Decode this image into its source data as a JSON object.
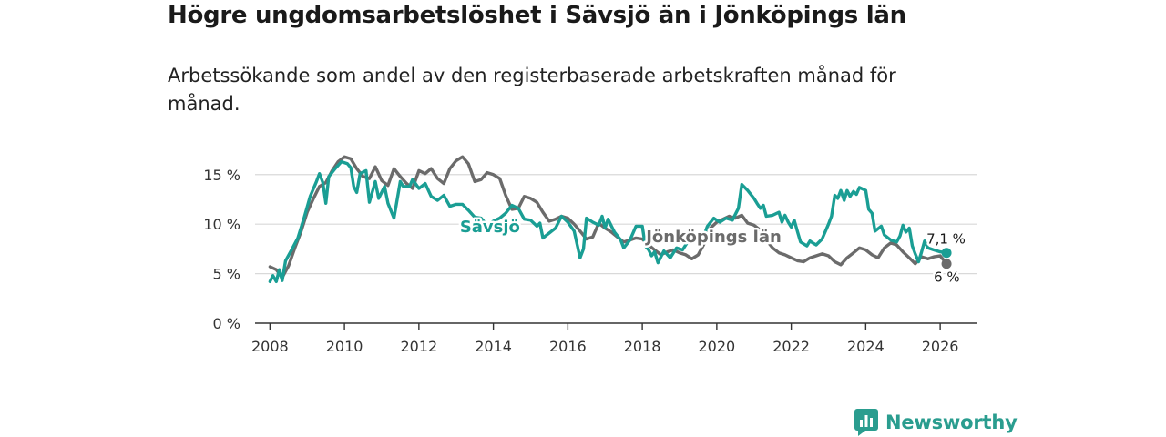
{
  "header": {
    "title": "Högre ungdomsarbetslöshet i Sävsjö än i Jönköpings län",
    "subtitle": "Arbetssökande som andel av den registerbaserade arbetskraften månad för månad."
  },
  "chart_data": {
    "type": "line",
    "title": "Högre ungdomsarbetslöshet i Sävsjö än i Jönköpings län",
    "subtitle": "Arbetssökande som andel av den registerbaserade arbetskraften månad för månad.",
    "xlabel": "",
    "ylabel": "",
    "xlim": [
      2007.6,
      2027.0
    ],
    "ylim": [
      0,
      17
    ],
    "x_ticks": [
      2008,
      2010,
      2012,
      2014,
      2016,
      2018,
      2020,
      2022,
      2024,
      2026
    ],
    "x_tick_labels": [
      "2008",
      "2010",
      "2012",
      "2014",
      "2016",
      "2018",
      "2020",
      "2022",
      "2024",
      "2026"
    ],
    "y_ticks": [
      0,
      5,
      10,
      15
    ],
    "y_tick_labels": [
      "0 %",
      "5 %",
      "10 %",
      "15 %"
    ],
    "grid": true,
    "series": [
      {
        "name": "Jönköpings län",
        "label": "Jönköpings län",
        "color": "#6b6b6b",
        "end_label": "6 %",
        "points": [
          [
            2008.0,
            5.7
          ],
          [
            2008.17,
            5.4
          ],
          [
            2008.33,
            4.6
          ],
          [
            2008.5,
            5.8
          ],
          [
            2008.67,
            7.6
          ],
          [
            2008.83,
            9.2
          ],
          [
            2009.0,
            11.2
          ],
          [
            2009.17,
            12.6
          ],
          [
            2009.33,
            13.8
          ],
          [
            2009.5,
            14.2
          ],
          [
            2009.67,
            15.4
          ],
          [
            2009.83,
            16.3
          ],
          [
            2010.0,
            16.8
          ],
          [
            2010.17,
            16.6
          ],
          [
            2010.33,
            15.6
          ],
          [
            2010.5,
            14.8
          ],
          [
            2010.67,
            14.6
          ],
          [
            2010.83,
            15.8
          ],
          [
            2011.0,
            14.4
          ],
          [
            2011.17,
            13.9
          ],
          [
            2011.33,
            15.6
          ],
          [
            2011.5,
            14.8
          ],
          [
            2011.67,
            14.1
          ],
          [
            2011.83,
            13.6
          ],
          [
            2012.0,
            15.4
          ],
          [
            2012.17,
            15.1
          ],
          [
            2012.33,
            15.6
          ],
          [
            2012.5,
            14.6
          ],
          [
            2012.67,
            14.1
          ],
          [
            2012.83,
            15.6
          ],
          [
            2013.0,
            16.4
          ],
          [
            2013.17,
            16.8
          ],
          [
            2013.33,
            16.1
          ],
          [
            2013.5,
            14.3
          ],
          [
            2013.67,
            14.5
          ],
          [
            2013.83,
            15.2
          ],
          [
            2014.0,
            15.0
          ],
          [
            2014.17,
            14.6
          ],
          [
            2014.33,
            12.9
          ],
          [
            2014.5,
            11.5
          ],
          [
            2014.67,
            11.6
          ],
          [
            2014.83,
            12.8
          ],
          [
            2015.0,
            12.6
          ],
          [
            2015.17,
            12.2
          ],
          [
            2015.33,
            11.2
          ],
          [
            2015.5,
            10.3
          ],
          [
            2015.67,
            10.5
          ],
          [
            2015.83,
            10.8
          ],
          [
            2016.0,
            10.6
          ],
          [
            2016.17,
            10.0
          ],
          [
            2016.33,
            9.3
          ],
          [
            2016.5,
            8.5
          ],
          [
            2016.67,
            8.7
          ],
          [
            2016.83,
            10.1
          ],
          [
            2017.0,
            9.6
          ],
          [
            2017.17,
            9.2
          ],
          [
            2017.33,
            8.7
          ],
          [
            2017.5,
            8.2
          ],
          [
            2017.67,
            8.4
          ],
          [
            2017.83,
            8.6
          ],
          [
            2018.0,
            8.5
          ],
          [
            2018.17,
            7.9
          ],
          [
            2018.33,
            7.4
          ],
          [
            2018.5,
            6.9
          ],
          [
            2018.67,
            7.2
          ],
          [
            2018.83,
            7.4
          ],
          [
            2019.0,
            7.1
          ],
          [
            2019.17,
            6.9
          ],
          [
            2019.33,
            6.5
          ],
          [
            2019.5,
            6.9
          ],
          [
            2019.67,
            8.1
          ],
          [
            2019.83,
            9.6
          ],
          [
            2020.0,
            10.2
          ],
          [
            2020.17,
            10.5
          ],
          [
            2020.33,
            10.8
          ],
          [
            2020.5,
            10.6
          ],
          [
            2020.67,
            10.9
          ],
          [
            2020.83,
            10.1
          ],
          [
            2021.0,
            9.9
          ],
          [
            2021.17,
            9.4
          ],
          [
            2021.33,
            8.4
          ],
          [
            2021.5,
            7.6
          ],
          [
            2021.67,
            7.1
          ],
          [
            2021.83,
            6.9
          ],
          [
            2022.0,
            6.6
          ],
          [
            2022.17,
            6.3
          ],
          [
            2022.33,
            6.2
          ],
          [
            2022.5,
            6.6
          ],
          [
            2022.67,
            6.8
          ],
          [
            2022.83,
            7.0
          ],
          [
            2023.0,
            6.8
          ],
          [
            2023.17,
            6.2
          ],
          [
            2023.33,
            5.9
          ],
          [
            2023.5,
            6.6
          ],
          [
            2023.67,
            7.1
          ],
          [
            2023.83,
            7.6
          ],
          [
            2024.0,
            7.4
          ],
          [
            2024.17,
            6.9
          ],
          [
            2024.33,
            6.6
          ],
          [
            2024.5,
            7.6
          ],
          [
            2024.67,
            8.1
          ],
          [
            2024.83,
            7.9
          ],
          [
            2025.0,
            7.2
          ],
          [
            2025.17,
            6.6
          ],
          [
            2025.33,
            6.0
          ],
          [
            2025.5,
            6.7
          ],
          [
            2025.67,
            6.5
          ],
          [
            2025.83,
            6.7
          ],
          [
            2026.0,
            6.8
          ],
          [
            2026.17,
            6.0
          ]
        ]
      },
      {
        "name": "Sävsjö",
        "label": "Sävsjö",
        "color": "#1a9e94",
        "end_label": "7,1 %",
        "points": [
          [
            2008.0,
            4.2
          ],
          [
            2008.08,
            4.8
          ],
          [
            2008.17,
            4.2
          ],
          [
            2008.25,
            5.4
          ],
          [
            2008.33,
            4.3
          ],
          [
            2008.42,
            6.3
          ],
          [
            2008.58,
            7.4
          ],
          [
            2008.75,
            8.6
          ],
          [
            2008.92,
            10.7
          ],
          [
            2009.08,
            12.8
          ],
          [
            2009.25,
            14.3
          ],
          [
            2009.33,
            15.1
          ],
          [
            2009.42,
            14.2
          ],
          [
            2009.5,
            12.1
          ],
          [
            2009.58,
            14.8
          ],
          [
            2009.75,
            15.6
          ],
          [
            2009.92,
            16.3
          ],
          [
            2010.08,
            16.1
          ],
          [
            2010.17,
            15.7
          ],
          [
            2010.25,
            13.8
          ],
          [
            2010.33,
            13.2
          ],
          [
            2010.42,
            15.1
          ],
          [
            2010.58,
            15.4
          ],
          [
            2010.67,
            12.2
          ],
          [
            2010.83,
            14.3
          ],
          [
            2010.92,
            12.6
          ],
          [
            2011.08,
            13.8
          ],
          [
            2011.17,
            12.1
          ],
          [
            2011.33,
            10.6
          ],
          [
            2011.5,
            14.3
          ],
          [
            2011.58,
            13.8
          ],
          [
            2011.75,
            13.8
          ],
          [
            2011.83,
            14.5
          ],
          [
            2012.0,
            13.6
          ],
          [
            2012.17,
            14.1
          ],
          [
            2012.33,
            12.8
          ],
          [
            2012.5,
            12.4
          ],
          [
            2012.67,
            12.9
          ],
          [
            2012.83,
            11.8
          ],
          [
            2013.0,
            12.0
          ],
          [
            2013.17,
            12.0
          ],
          [
            2013.33,
            11.4
          ],
          [
            2013.5,
            10.7
          ],
          [
            2013.67,
            10.6
          ],
          [
            2013.83,
            9.9
          ],
          [
            2014.0,
            10.3
          ],
          [
            2014.17,
            10.6
          ],
          [
            2014.33,
            11.1
          ],
          [
            2014.5,
            11.9
          ],
          [
            2014.67,
            11.6
          ],
          [
            2014.83,
            10.5
          ],
          [
            2015.0,
            10.4
          ],
          [
            2015.17,
            9.8
          ],
          [
            2015.25,
            10.1
          ],
          [
            2015.33,
            8.6
          ],
          [
            2015.5,
            9.1
          ],
          [
            2015.67,
            9.6
          ],
          [
            2015.83,
            10.8
          ],
          [
            2016.0,
            10.2
          ],
          [
            2016.17,
            9.3
          ],
          [
            2016.33,
            6.6
          ],
          [
            2016.42,
            7.5
          ],
          [
            2016.5,
            10.6
          ],
          [
            2016.67,
            10.2
          ],
          [
            2016.83,
            9.9
          ],
          [
            2016.92,
            10.8
          ],
          [
            2017.0,
            9.6
          ],
          [
            2017.08,
            10.5
          ],
          [
            2017.25,
            9.2
          ],
          [
            2017.42,
            8.4
          ],
          [
            2017.5,
            7.6
          ],
          [
            2017.67,
            8.4
          ],
          [
            2017.83,
            9.8
          ],
          [
            2018.0,
            9.8
          ],
          [
            2018.08,
            7.8
          ],
          [
            2018.17,
            7.4
          ],
          [
            2018.25,
            6.8
          ],
          [
            2018.33,
            7.2
          ],
          [
            2018.42,
            6.1
          ],
          [
            2018.58,
            7.3
          ],
          [
            2018.75,
            6.6
          ],
          [
            2018.92,
            7.6
          ],
          [
            2019.08,
            7.4
          ],
          [
            2019.25,
            8.4
          ],
          [
            2019.42,
            8.9
          ],
          [
            2019.58,
            8.1
          ],
          [
            2019.75,
            9.8
          ],
          [
            2019.92,
            10.6
          ],
          [
            2020.08,
            10.2
          ],
          [
            2020.25,
            10.6
          ],
          [
            2020.42,
            10.4
          ],
          [
            2020.58,
            11.6
          ],
          [
            2020.67,
            14.0
          ],
          [
            2020.83,
            13.4
          ],
          [
            2021.0,
            12.6
          ],
          [
            2021.08,
            12.1
          ],
          [
            2021.17,
            11.6
          ],
          [
            2021.25,
            11.9
          ],
          [
            2021.33,
            10.8
          ],
          [
            2021.5,
            10.9
          ],
          [
            2021.67,
            11.2
          ],
          [
            2021.75,
            10.2
          ],
          [
            2021.83,
            10.9
          ],
          [
            2021.92,
            10.2
          ],
          [
            2022.0,
            9.7
          ],
          [
            2022.08,
            10.4
          ],
          [
            2022.17,
            9.2
          ],
          [
            2022.25,
            8.2
          ],
          [
            2022.42,
            7.8
          ],
          [
            2022.5,
            8.3
          ],
          [
            2022.58,
            8.1
          ],
          [
            2022.67,
            7.9
          ],
          [
            2022.83,
            8.5
          ],
          [
            2023.0,
            10.0
          ],
          [
            2023.08,
            10.8
          ],
          [
            2023.17,
            12.9
          ],
          [
            2023.25,
            12.6
          ],
          [
            2023.33,
            13.4
          ],
          [
            2023.42,
            12.4
          ],
          [
            2023.5,
            13.4
          ],
          [
            2023.58,
            12.8
          ],
          [
            2023.67,
            13.3
          ],
          [
            2023.75,
            13.0
          ],
          [
            2023.83,
            13.7
          ],
          [
            2024.0,
            13.4
          ],
          [
            2024.08,
            11.5
          ],
          [
            2024.17,
            11.1
          ],
          [
            2024.25,
            9.3
          ],
          [
            2024.42,
            9.8
          ],
          [
            2024.5,
            8.9
          ],
          [
            2024.67,
            8.4
          ],
          [
            2024.83,
            8.2
          ],
          [
            2024.92,
            8.8
          ],
          [
            2025.0,
            9.9
          ],
          [
            2025.08,
            9.2
          ],
          [
            2025.17,
            9.6
          ],
          [
            2025.25,
            7.8
          ],
          [
            2025.33,
            7.0
          ],
          [
            2025.42,
            6.2
          ],
          [
            2025.5,
            7.2
          ],
          [
            2025.58,
            8.3
          ],
          [
            2025.67,
            7.6
          ],
          [
            2025.83,
            7.4
          ],
          [
            2026.0,
            7.2
          ],
          [
            2026.17,
            7.1
          ]
        ]
      }
    ]
  },
  "brand": {
    "name": "Newsworthy"
  }
}
